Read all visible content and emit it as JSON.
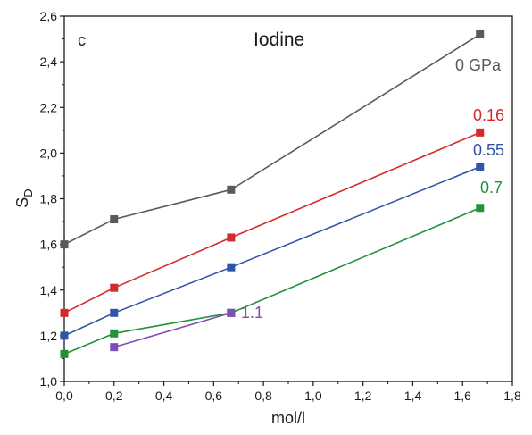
{
  "chart_data": {
    "type": "line",
    "panel_label": "c",
    "title": "Iodine",
    "xlabel": "mol/l",
    "ylabel_main": "S",
    "ylabel_sub": "D",
    "xlim": [
      0.0,
      1.8
    ],
    "ylim": [
      1.0,
      2.6
    ],
    "x_ticks": [
      "0,0",
      "0,2",
      "0,4",
      "0,6",
      "0,8",
      "1,0",
      "1,2",
      "1,4",
      "1,6",
      "1,8"
    ],
    "y_ticks": [
      "1,0",
      "1,2",
      "1,4",
      "1,6",
      "1,8",
      "2,0",
      "2,2",
      "2,4",
      "2,6"
    ],
    "grid": false,
    "series": [
      {
        "name": "0 GPa",
        "color": "#5a5a5a",
        "x": [
          0.0,
          0.2,
          0.67,
          1.67
        ],
        "y": [
          1.6,
          1.71,
          1.84,
          2.52
        ]
      },
      {
        "name": "0.16",
        "color": "#d42a2a",
        "x": [
          0.0,
          0.2,
          0.67,
          1.67
        ],
        "y": [
          1.3,
          1.41,
          1.63,
          2.09
        ]
      },
      {
        "name": "0.55",
        "color": "#2e56a6",
        "x": [
          0.0,
          0.2,
          0.67,
          1.67
        ],
        "y": [
          1.2,
          1.3,
          1.5,
          1.94
        ]
      },
      {
        "name": "0.7",
        "color": "#21913a",
        "x": [
          0.0,
          0.2,
          0.67,
          1.67
        ],
        "y": [
          1.12,
          1.21,
          1.3,
          1.76
        ]
      },
      {
        "name": "1.1",
        "color": "#7d4fb0",
        "x": [
          0.2,
          0.67
        ],
        "y": [
          1.15,
          1.3
        ]
      }
    ]
  }
}
